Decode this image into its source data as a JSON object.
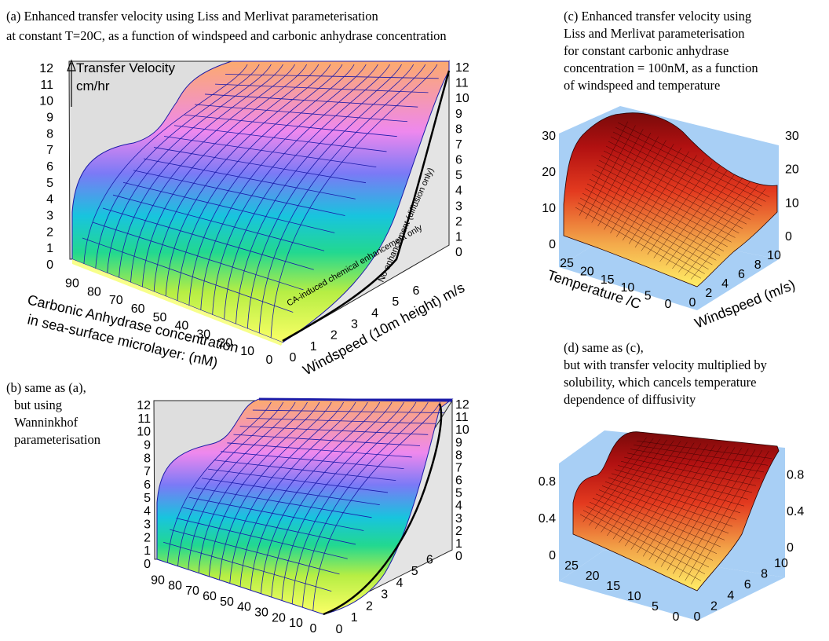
{
  "chart_data": [
    {
      "panel": "a",
      "type": "surface3d",
      "caption_lines": [
        "(a) Enhanced transfer velocity using Liss and Merlivat parameterisation",
        "at constant T=20C, as a function of windspeed and carbonic anhydrase concentration"
      ],
      "zlabel_lines": [
        "Transfer Velocity",
        "cm/hr"
      ],
      "xlabel": "Windspeed (10m height) m/s",
      "ylabel_lines": [
        "Carbonic Anhydrase concentration",
        "in sea-surface microlayer: (nM)"
      ],
      "z_ticks": [
        "0",
        "1",
        "2",
        "3",
        "4",
        "5",
        "6",
        "7",
        "8",
        "9",
        "10",
        "11",
        "12"
      ],
      "x_ticks": [
        "0",
        "1",
        "2",
        "3",
        "4",
        "5",
        "6"
      ],
      "y_ticks": [
        "0",
        "10",
        "20",
        "30",
        "40",
        "50",
        "60",
        "70",
        "80",
        "90"
      ],
      "zlim": [
        0,
        12
      ],
      "xlim": [
        0,
        6.5
      ],
      "ylim": [
        0,
        95
      ],
      "annotations": [
        "CA-induced chemical enhancement only",
        "No enhancement (diffusion only)"
      ]
    },
    {
      "panel": "b",
      "type": "surface3d",
      "caption_lines": [
        "(b) same as (a),",
        "but using",
        "Wanninkhof",
        "parameterisation"
      ],
      "z_ticks": [
        "0",
        "1",
        "2",
        "3",
        "4",
        "5",
        "6",
        "7",
        "8",
        "9",
        "10",
        "11",
        "12"
      ],
      "x_ticks": [
        "0",
        "1",
        "2",
        "3",
        "4",
        "5",
        "6"
      ],
      "y_ticks": [
        "0",
        "10",
        "20",
        "30",
        "40",
        "50",
        "60",
        "70",
        "80",
        "90"
      ],
      "zlim": [
        0,
        12
      ],
      "xlim": [
        0,
        6.5
      ],
      "ylim": [
        0,
        95
      ]
    },
    {
      "panel": "c",
      "type": "surface3d",
      "caption_lines": [
        "(c) Enhanced transfer velocity using",
        "Liss and Merlivat parameterisation",
        "for constant carbonic anhydrase",
        "concentration = 100nM, as a function",
        "of windspeed and temperature"
      ],
      "xlabel": "Windspeed (m/s)",
      "ylabel": "Temperature /C",
      "z_ticks": [
        "0",
        "10",
        "20",
        "30"
      ],
      "x_ticks": [
        "0",
        "2",
        "4",
        "6",
        "8",
        "10"
      ],
      "y_ticks": [
        "0",
        "5",
        "10",
        "15",
        "20",
        "25"
      ],
      "zlim": [
        0,
        30
      ],
      "xlim": [
        0,
        10
      ],
      "ylim": [
        0,
        25
      ]
    },
    {
      "panel": "d",
      "type": "surface3d",
      "caption_lines": [
        "(d) same as (c),",
        "but with transfer velocity multiplied by",
        "solubility, which cancels temperature",
        "dependence of diffusivity"
      ],
      "z_ticks": [
        "0",
        "0.4",
        "0.8"
      ],
      "x_ticks": [
        "0",
        "2",
        "4",
        "6",
        "8",
        "10"
      ],
      "y_ticks": [
        "0",
        "5",
        "10",
        "15",
        "20",
        "25"
      ],
      "zlim": [
        0,
        0.9
      ],
      "xlim": [
        0,
        10
      ],
      "ylim": [
        0,
        25
      ]
    }
  ],
  "colors": {
    "panel_ab_mesh": "#1a1aa8",
    "panel_ab_wall": "#dedede",
    "panel_cd_wall": "#a8cff5",
    "panel_cd_mesh": "#2a0000"
  }
}
